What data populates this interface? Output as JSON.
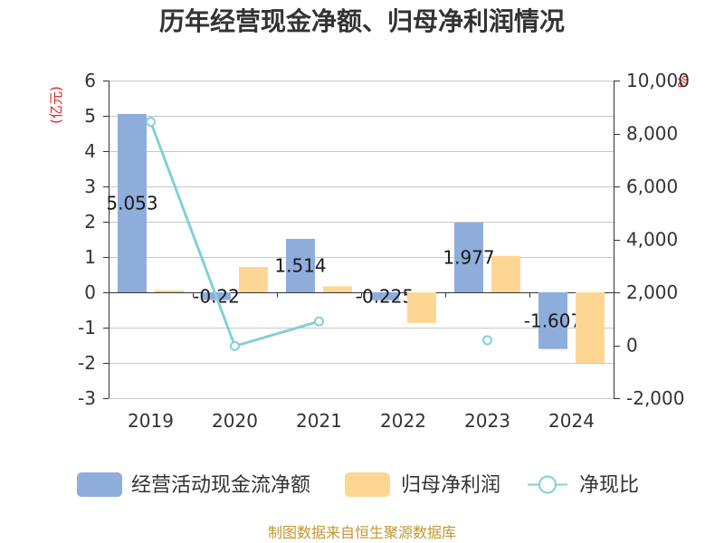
{
  "colors": {
    "title": "#333333",
    "text": "#333333",
    "data_label": "#1a1a1a",
    "axis_line": "#333333",
    "grid": "#c8c8c8",
    "unit_label": "#dd2222",
    "source_note": "#c4962f"
  },
  "chart_data": {
    "type": "bar",
    "title": "历年经营现金净额、归母净利润情况",
    "categories": [
      "2019",
      "2020",
      "2021",
      "2022",
      "2023",
      "2024"
    ],
    "y_left": {
      "label": "(亿元)",
      "range": [
        -3,
        6
      ],
      "ticks": [
        6,
        5,
        4,
        3,
        2,
        1,
        0,
        -1,
        -2,
        -3
      ],
      "tick_labels": [
        "6",
        "5",
        "4",
        "3",
        "2",
        "1",
        "0",
        "-1",
        "-2",
        "-3"
      ]
    },
    "y_right": {
      "label": "%",
      "range": [
        -2000,
        10000
      ],
      "ticks": [
        10000,
        8000,
        6000,
        4000,
        2000,
        0,
        -2000
      ],
      "tick_labels": [
        "10,000",
        "8,000",
        "6,000",
        "4,000",
        "2,000",
        "0",
        "-2,000"
      ]
    },
    "grid": true,
    "legend_position": "bottom",
    "series": [
      {
        "name": "经营活动现金流净额",
        "type": "bar",
        "color": "#8eadda",
        "values": [
          5.053,
          -0.22,
          1.514,
          -0.225,
          1.977,
          -1.607
        ],
        "data_labels": [
          "5.053",
          "-0.22",
          "1.514",
          "-0.225",
          "1.977",
          "-1.607"
        ]
      },
      {
        "name": "归母净利润",
        "type": "bar",
        "color": "#fed694",
        "values": [
          0.06,
          0.72,
          0.17,
          -0.87,
          1.03,
          -2.0
        ]
      },
      {
        "name": "净现比",
        "type": "line",
        "color": "#84cfd7",
        "values": [
          8440,
          -30,
          900,
          null,
          190,
          null
        ]
      }
    ]
  },
  "source_note": "制图数据来自恒生聚源数据库"
}
